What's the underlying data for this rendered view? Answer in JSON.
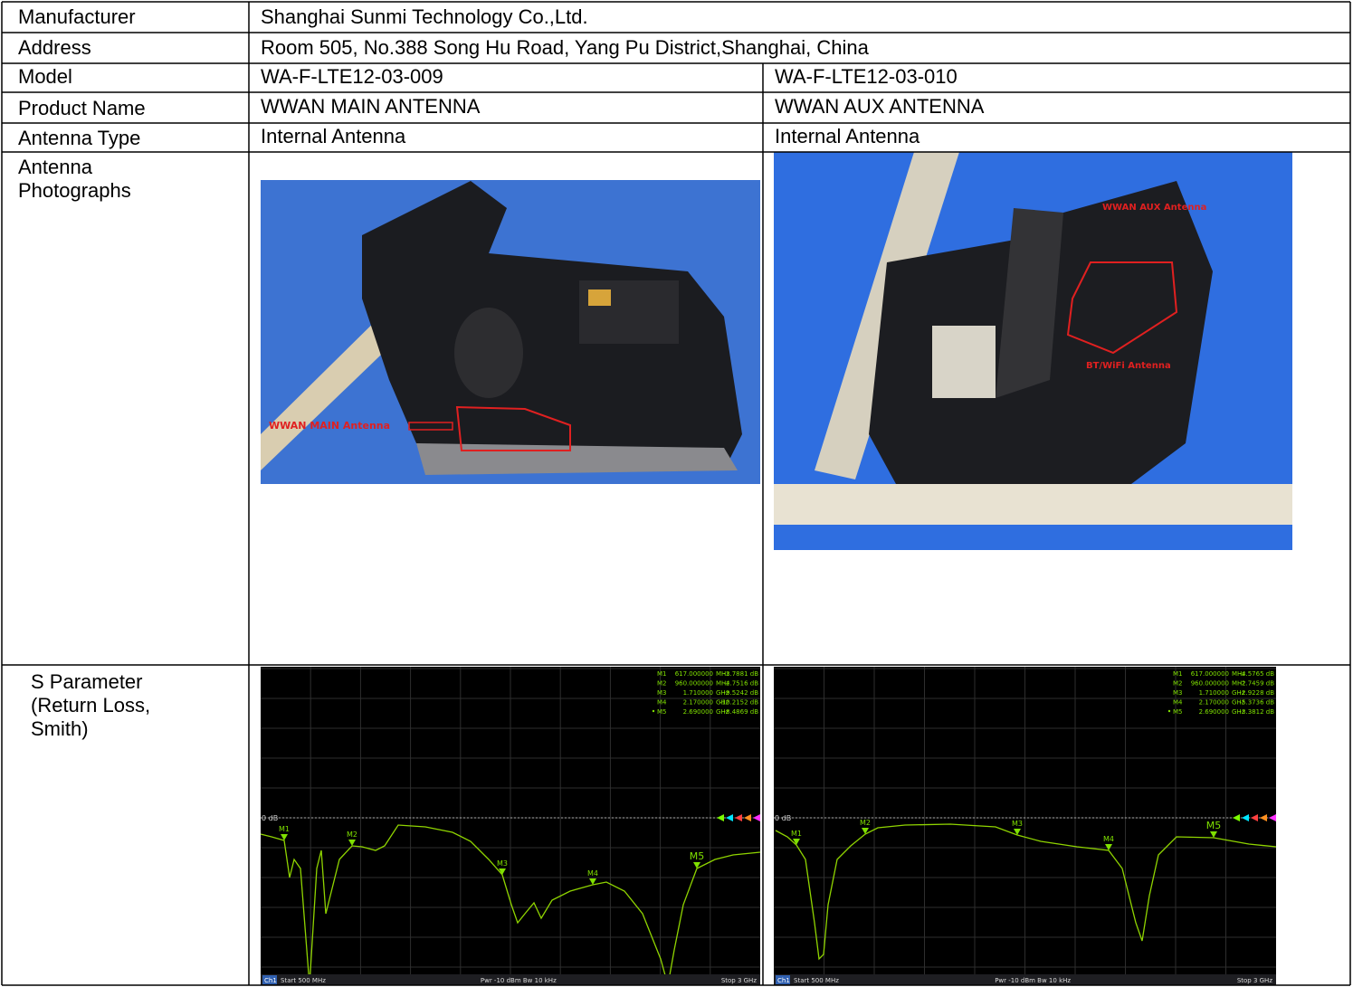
{
  "rows": [
    {
      "label": "Manufacturer",
      "value": "Shanghai Sunmi Technology Co.,Ltd."
    },
    {
      "label": "Address",
      "value": "Room 505, No.388 Song Hu Road, Yang Pu District,Shanghai, China"
    },
    {
      "label": "Model",
      "values": [
        "WA-F-LTE12-03-009",
        "WA-F-LTE12-03-010"
      ]
    },
    {
      "label": "Product Name",
      "values": [
        "WWAN MAIN ANTENNA",
        "WWAN AUX ANTENNA"
      ]
    },
    {
      "label": "Antenna Type",
      "values": [
        "Internal Antenna",
        "Internal Antenna"
      ]
    },
    {
      "label": "Antenna Photographs",
      "photo_labels": [
        [
          "WWAN MAIN Antenna"
        ],
        [
          "WWAN AUX Antenna",
          "BT/WiFi Antenna"
        ]
      ]
    },
    {
      "label": "S Parameter (Return Loss, Smith)",
      "plots": [
        {
          "ref": "0 dB",
          "channel": "Ch1",
          "start": "Start 500 MHz",
          "power": "Pwr -10 dBm Bw 10 kHz",
          "stop": "Stop 3 GHz",
          "markers": [
            {
              "name": "M1",
              "freq": "617.000000",
              "unit": "MHz",
              "value": "-3.7881 dB"
            },
            {
              "name": "M2",
              "freq": "960.000000",
              "unit": "MHz",
              "value": "-4.7516 dB"
            },
            {
              "name": "M3",
              "freq": "1.710000",
              "unit": "GHz",
              "value": "-9.5242 dB"
            },
            {
              "name": "M4",
              "freq": "2.170000",
              "unit": "GHz",
              "value": "-10.2152 dB"
            },
            {
              "name": "M5",
              "freq": "2.690000",
              "unit": "GHz",
              "value": "-8.4869 dB"
            }
          ]
        },
        {
          "ref": "0 dB",
          "channel": "Ch1",
          "start": "Start 500 MHz",
          "power": "Pwr -10 dBm Bw 10 kHz",
          "stop": "Stop 3 GHz",
          "markers": [
            {
              "name": "M1",
              "freq": "617.000000",
              "unit": "MHz",
              "value": "-4.5765 dB"
            },
            {
              "name": "M2",
              "freq": "960.000000",
              "unit": "MHz",
              "value": "-2.7459 dB"
            },
            {
              "name": "M3",
              "freq": "1.710000",
              "unit": "GHz",
              "value": "-2.9228 dB"
            },
            {
              "name": "M4",
              "freq": "2.170000",
              "unit": "GHz",
              "value": "-5.3736 dB"
            },
            {
              "name": "M5",
              "freq": "2.690000",
              "unit": "GHz",
              "value": "-3.3812 dB"
            }
          ]
        }
      ]
    }
  ]
}
